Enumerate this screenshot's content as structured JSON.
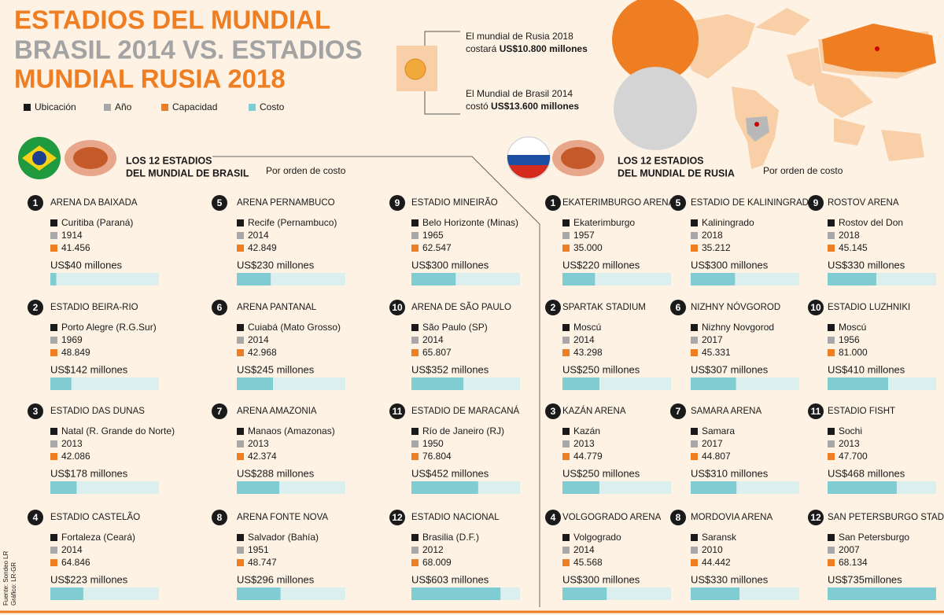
{
  "header": {
    "title_lines": [
      "ESTADIOS DEL MUNDIAL",
      "BRASIL 2014 VS. ESTADIOS",
      "MUNDIAL RUSIA 2018"
    ]
  },
  "legend": [
    "Ubicación",
    "Año",
    "Capacidad",
    "Costo"
  ],
  "summary": {
    "russia": {
      "line1": "El mundial de Rusia 2018",
      "prefix": "costará",
      "amount": "US$10.800 millones"
    },
    "brazil": {
      "line1": "El Mundial de Brasil 2014",
      "prefix": "costó",
      "amount": "US$13.600 millones"
    }
  },
  "brazil": {
    "heading": "LOS 12 ESTADIOS",
    "heading2": "DEL MUNDIAL DE BRASIL",
    "note": "Por orden de costo",
    "stadiums": [
      {
        "rank": 1,
        "name": "ARENA DA BAIXADA",
        "location": "Curitiba (Paraná)",
        "year": 1914,
        "capacity": "41.456",
        "cost": 40,
        "cost_label": "US$40 millones"
      },
      {
        "rank": 2,
        "name": "ESTADIO BEIRA-RIO",
        "location": "Porto Alegre (R.G.Sur)",
        "year": 1969,
        "capacity": "48.849",
        "cost": 142,
        "cost_label": "US$142 millones"
      },
      {
        "rank": 3,
        "name": "ESTADIO DAS DUNAS",
        "location": "Natal (R. Grande do Norte)",
        "year": 2013,
        "capacity": "42.086",
        "cost": 178,
        "cost_label": "US$178 millones"
      },
      {
        "rank": 4,
        "name": "ESTADIO CASTELÃO",
        "location": "Fortaleza (Ceará)",
        "year": 2014,
        "capacity": "64.846",
        "cost": 223,
        "cost_label": "US$223 millones"
      },
      {
        "rank": 5,
        "name": "ARENA PERNAMBUCO",
        "location": "Recife (Pernambuco)",
        "year": 2014,
        "capacity": "42.849",
        "cost": 230,
        "cost_label": "US$230 millones"
      },
      {
        "rank": 6,
        "name": "ARENA PANTANAL",
        "location": "Cuiabá (Mato Grosso)",
        "year": 2014,
        "capacity": "42.968",
        "cost": 245,
        "cost_label": "US$245 millones"
      },
      {
        "rank": 7,
        "name": "ARENA AMAZONIA",
        "location": "Manaos (Amazonas)",
        "year": 2013,
        "capacity": "42.374",
        "cost": 288,
        "cost_label": "US$288 millones"
      },
      {
        "rank": 8,
        "name": "ARENA FONTE NOVA",
        "location": "Salvador (Bahía)",
        "year": 1951,
        "capacity": "48.747",
        "cost": 296,
        "cost_label": "US$296 millones"
      },
      {
        "rank": 9,
        "name": "ESTADIO MINEIRÃO",
        "location": "Belo Horizonte (Minas)",
        "year": 1965,
        "capacity": "62.547",
        "cost": 300,
        "cost_label": "US$300 millones"
      },
      {
        "rank": 10,
        "name": "ARENA DE SÃO PAULO",
        "location": "São Paulo (SP)",
        "year": 2014,
        "capacity": "65.807",
        "cost": 352,
        "cost_label": "US$352 millones"
      },
      {
        "rank": 11,
        "name": "ESTADIO DE MARACANÁ",
        "location": "Río de Janeiro (RJ)",
        "year": 1950,
        "capacity": "76.804",
        "cost": 452,
        "cost_label": "US$452 millones"
      },
      {
        "rank": 12,
        "name": "ESTADIO NACIONAL",
        "location": "Brasilia (D.F.)",
        "year": 2012,
        "capacity": "68.009",
        "cost": 603,
        "cost_label": "US$603 millones"
      }
    ]
  },
  "russia": {
    "heading": "LOS 12 ESTADIOS",
    "heading2": "DEL MUNDIAL DE RUSIA",
    "note": "Por orden de costo",
    "stadiums": [
      {
        "rank": 1,
        "name": "EKATERIMBURGO ARENA",
        "location": "Ekaterimburgo",
        "year": 1957,
        "capacity": "35.000",
        "cost": 220,
        "cost_label": "US$220 millones"
      },
      {
        "rank": 2,
        "name": "SPARTAK STADIUM",
        "location": "Moscú",
        "year": 2014,
        "capacity": "43.298",
        "cost": 250,
        "cost_label": "US$250 millones"
      },
      {
        "rank": 3,
        "name": "KAZÁN ARENA",
        "location": "Kazán",
        "year": 2013,
        "capacity": "44.779",
        "cost": 250,
        "cost_label": "US$250 millones"
      },
      {
        "rank": 4,
        "name": "VOLGOGRADO ARENA",
        "location": "Volgogrado",
        "year": 2014,
        "capacity": "45.568",
        "cost": 300,
        "cost_label": "US$300 millones"
      },
      {
        "rank": 5,
        "name": "ESTADIO DE KALININGRADO",
        "location": "Kaliningrado",
        "year": 2018,
        "capacity": "35.212",
        "cost": 300,
        "cost_label": "US$300 millones"
      },
      {
        "rank": 6,
        "name": "NIZHNY NÓVGOROD",
        "location": "Nizhny Novgorod",
        "year": 2017,
        "capacity": "45.331",
        "cost": 307,
        "cost_label": "US$307 millones"
      },
      {
        "rank": 7,
        "name": "SAMARA ARENA",
        "location": "Samara",
        "year": 2017,
        "capacity": "44.807",
        "cost": 310,
        "cost_label": "US$310 millones"
      },
      {
        "rank": 8,
        "name": "MORDOVIA ARENA",
        "location": "Saransk",
        "year": 2010,
        "capacity": "44.442",
        "cost": 330,
        "cost_label": "US$330 millones"
      },
      {
        "rank": 9,
        "name": "ROSTOV ARENA",
        "location": "Rostov del Don",
        "year": 2018,
        "capacity": "45.145",
        "cost": 330,
        "cost_label": "US$330 millones"
      },
      {
        "rank": 10,
        "name": "ESTADIO LUZHNIKI",
        "location": "Moscú",
        "year": 1956,
        "capacity": "81.000",
        "cost": 410,
        "cost_label": "US$410 millones"
      },
      {
        "rank": 11,
        "name": "ESTADIO FISHT",
        "location": "Sochi",
        "year": 2013,
        "capacity": "47.700",
        "cost": 468,
        "cost_label": "US$468 millones"
      },
      {
        "rank": 12,
        "name": "SAN PETERSBURGO STADIUM",
        "location": "San Petersburgo",
        "year": 2007,
        "capacity": "68.134",
        "cost": 735,
        "cost_label": "US$735millones"
      }
    ]
  },
  "source": "Fuente: Sondeo LR",
  "credit": "Gráfico: LR-GR"
}
